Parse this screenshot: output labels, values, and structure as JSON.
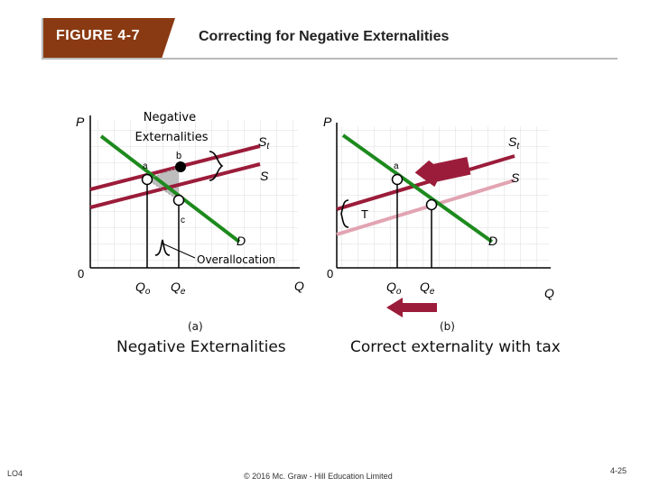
{
  "header": {
    "figure_label": "FIGURE 4-7",
    "title": "Correcting for Negative Externalities"
  },
  "panel_a": {
    "sublabel": "(a)",
    "caption": "Negative  Externalities",
    "axis_p": "P",
    "axis_q": "Q",
    "origin": "0",
    "annotation": "Negative\nExternalities",
    "supply_label": "S",
    "supply_t_label": "St",
    "demand_label": "D",
    "point_a": "a",
    "point_b": "b",
    "point_c": "c",
    "overallocation": "Overallocation",
    "q_o": "Qo",
    "q_e": "Qe"
  },
  "panel_b": {
    "sublabel": "(b)",
    "caption": "Correct externality with tax",
    "axis_p": "P",
    "axis_q": "Q",
    "origin": "0",
    "supply_label": "S",
    "supply_t_label": "St",
    "demand_label": "D",
    "point_a": "a",
    "tax_label": "T",
    "q_o": "Qo",
    "q_e": "Qe"
  },
  "footer": {
    "lo": "LO4",
    "copyright": "© 2016 Mc. Graw - Hill Education Limited",
    "page": "4-25"
  },
  "colors": {
    "supply_t": "#9b1c3a",
    "supply_b": "#e2a4b2",
    "demand": "#1d8a1d",
    "arrow": "#9b1c3a",
    "badge": "#8a3a12"
  }
}
